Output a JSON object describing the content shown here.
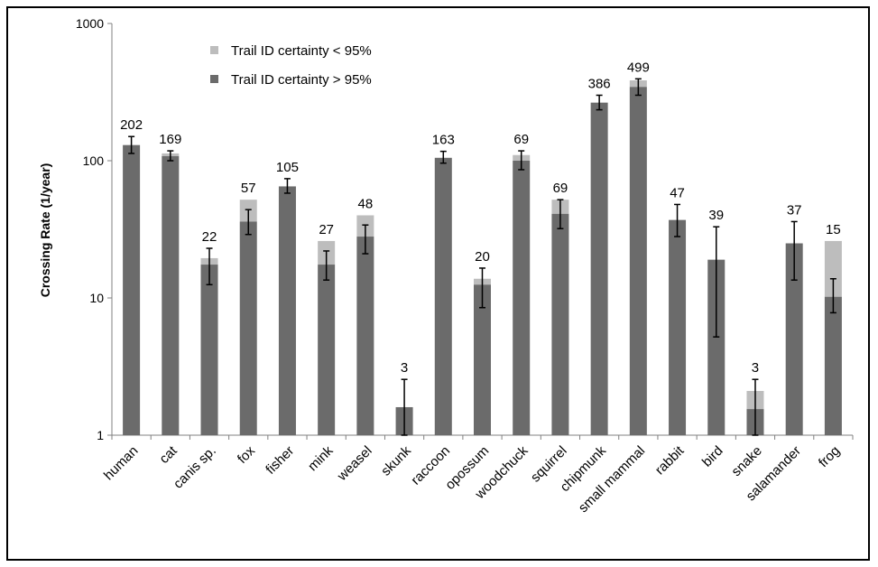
{
  "chart_data": {
    "type": "bar",
    "stacked": true,
    "scale": "log",
    "title": "",
    "xlabel": "",
    "ylabel": "Crossing Rate (1/year)",
    "ylim": [
      1,
      1000
    ],
    "y_ticks": [
      "1",
      "10",
      "100",
      "1000"
    ],
    "grid": false,
    "legend_position": "top-left",
    "categories": [
      "human",
      "cat",
      "canis sp.",
      "fox",
      "fisher",
      "mink",
      "weasel",
      "skunk",
      "raccoon",
      "opossum",
      "woodchuck",
      "squirrel",
      "chipmunk",
      "small mammal",
      "rabbit",
      "bird",
      "snake",
      "salamander",
      "frog"
    ],
    "series": [
      {
        "name": "Trail ID certainty > 95%",
        "color": "#6b6b6b",
        "values": [
          130,
          108,
          17.5,
          36,
          65,
          17.5,
          28,
          1.6,
          105,
          12.5,
          100,
          41,
          265,
          345,
          37,
          19,
          1.55,
          25,
          10.2
        ]
      },
      {
        "name": "Trail ID certainty < 95%",
        "color": "#bdbdbd",
        "totals": [
          130,
          113,
          19.5,
          52,
          65,
          26,
          40,
          1.6,
          105,
          13.8,
          110,
          52,
          265,
          385,
          37,
          19,
          2.1,
          25,
          26
        ]
      }
    ],
    "error_bars": {
      "low": [
        113,
        100,
        12.5,
        29,
        58,
        13.5,
        21,
        1,
        96,
        8.5,
        86,
        32,
        235,
        300,
        28,
        5.2,
        1,
        13.5,
        7.8
      ],
      "high": [
        150,
        118,
        23,
        44,
        74,
        22,
        34,
        2.55,
        117,
        16.5,
        118,
        52,
        300,
        395,
        48,
        33,
        2.55,
        36,
        13.8
      ]
    },
    "data_labels": [
      "202",
      "169",
      "22",
      "57",
      "105",
      "27",
      "48",
      "3",
      "163",
      "20",
      "69",
      "69",
      "386",
      "499",
      "47",
      "39",
      "3",
      "37",
      "15"
    ]
  }
}
